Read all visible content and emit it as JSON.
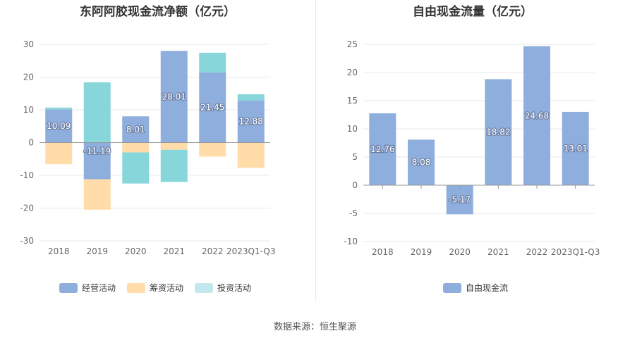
{
  "source_text": "数据来源：恒生聚源",
  "colors": {
    "operating": "#8eaedd",
    "financing": "#ffdca8",
    "investing": "#87d6da",
    "free": "#8eaedd",
    "axis": "#999999",
    "grid": "#e8e8e8"
  },
  "chart_data": [
    {
      "type": "bar",
      "stacked": true,
      "title": "东阿阿胶现金流净额（亿元）",
      "categories": [
        "2018",
        "2019",
        "2020",
        "2021",
        "2022",
        "2023Q1-Q3"
      ],
      "ylim": [
        -30,
        30
      ],
      "yticks": [
        30,
        20,
        10,
        0,
        -10,
        -20,
        -30
      ],
      "series": [
        {
          "name": "经营活动",
          "values": [
            10.09,
            -11.19,
            8.01,
            28.01,
            21.45,
            12.88
          ],
          "label_values": [
            "10.09",
            "-11.19",
            "8.01",
            "28.01",
            "21.45",
            "12.88"
          ]
        },
        {
          "name": "筹资活动",
          "values": [
            -6.6,
            -9.3,
            -3.0,
            -2.2,
            -4.3,
            -7.7
          ]
        },
        {
          "name": "投资活动",
          "values": [
            0.6,
            18.4,
            -9.5,
            -9.8,
            6.0,
            1.9
          ]
        }
      ],
      "legend": [
        "经营活动",
        "筹资活动",
        "投资活动"
      ]
    },
    {
      "type": "bar",
      "title": "自由现金流量（亿元）",
      "categories": [
        "2018",
        "2019",
        "2020",
        "2021",
        "2022",
        "2023Q1-Q3"
      ],
      "ylim": [
        -10,
        25
      ],
      "yticks": [
        25,
        20,
        15,
        10,
        5,
        0,
        -5,
        -10
      ],
      "series": [
        {
          "name": "自由现金流",
          "values": [
            12.76,
            8.08,
            -5.17,
            18.82,
            24.68,
            13.01
          ],
          "label_values": [
            "12.76",
            "8.08",
            "-5.17",
            "18.82",
            "24.68",
            "13.01"
          ]
        }
      ],
      "legend": [
        "自由现金流"
      ]
    }
  ]
}
